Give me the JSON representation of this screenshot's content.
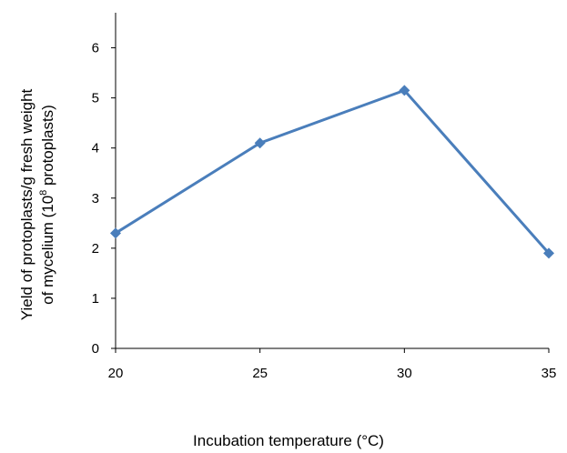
{
  "chart_data": {
    "type": "line",
    "x_label": "Incubation temperature (°C)",
    "y_label_lines": [
      "Yield of protoplasts/g  fresh weight",
      "of mycelium  (10",
      "8",
      "  protoplasts)"
    ],
    "x": [
      20,
      25,
      30,
      35
    ],
    "series": [
      {
        "name": "Yield",
        "color": "#4a7ebb",
        "values": [
          2.3,
          4.1,
          5.15,
          1.9
        ]
      }
    ],
    "xlim": [
      20,
      35
    ],
    "xticks": [
      20,
      25,
      30,
      35
    ],
    "ylim": [
      0,
      6.7
    ],
    "yticks": [
      0,
      1,
      2,
      3,
      4,
      5,
      6
    ]
  }
}
